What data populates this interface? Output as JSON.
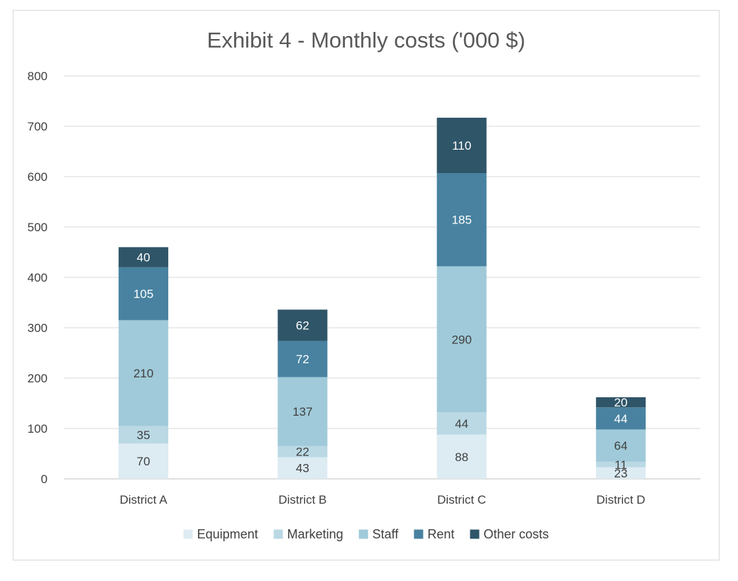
{
  "chart_data": {
    "type": "bar",
    "stacked": true,
    "title": "Exhibit 4 - Monthly costs ('000 $)",
    "xlabel": "",
    "ylabel": "",
    "ylim": [
      0,
      800
    ],
    "yticks": [
      0,
      100,
      200,
      300,
      400,
      500,
      600,
      700,
      800
    ],
    "grid": true,
    "legend_position": "bottom",
    "categories": [
      "District A",
      "District B",
      "District C",
      "District D"
    ],
    "series": [
      {
        "name": "Equipment",
        "color": "#ddebf3",
        "label_color": "#404040",
        "values": [
          70,
          43,
          88,
          23
        ]
      },
      {
        "name": "Marketing",
        "color": "#bad9e5",
        "label_color": "#404040",
        "values": [
          35,
          22,
          44,
          11
        ]
      },
      {
        "name": "Staff",
        "color": "#a0cad9",
        "label_color": "#404040",
        "values": [
          210,
          137,
          290,
          64
        ]
      },
      {
        "name": "Rent",
        "color": "#4882a0",
        "label_color": "#ffffff",
        "values": [
          105,
          72,
          185,
          44
        ]
      },
      {
        "name": "Other costs",
        "color": "#2f5568",
        "label_color": "#ffffff",
        "values": [
          40,
          62,
          110,
          20
        ]
      }
    ]
  }
}
